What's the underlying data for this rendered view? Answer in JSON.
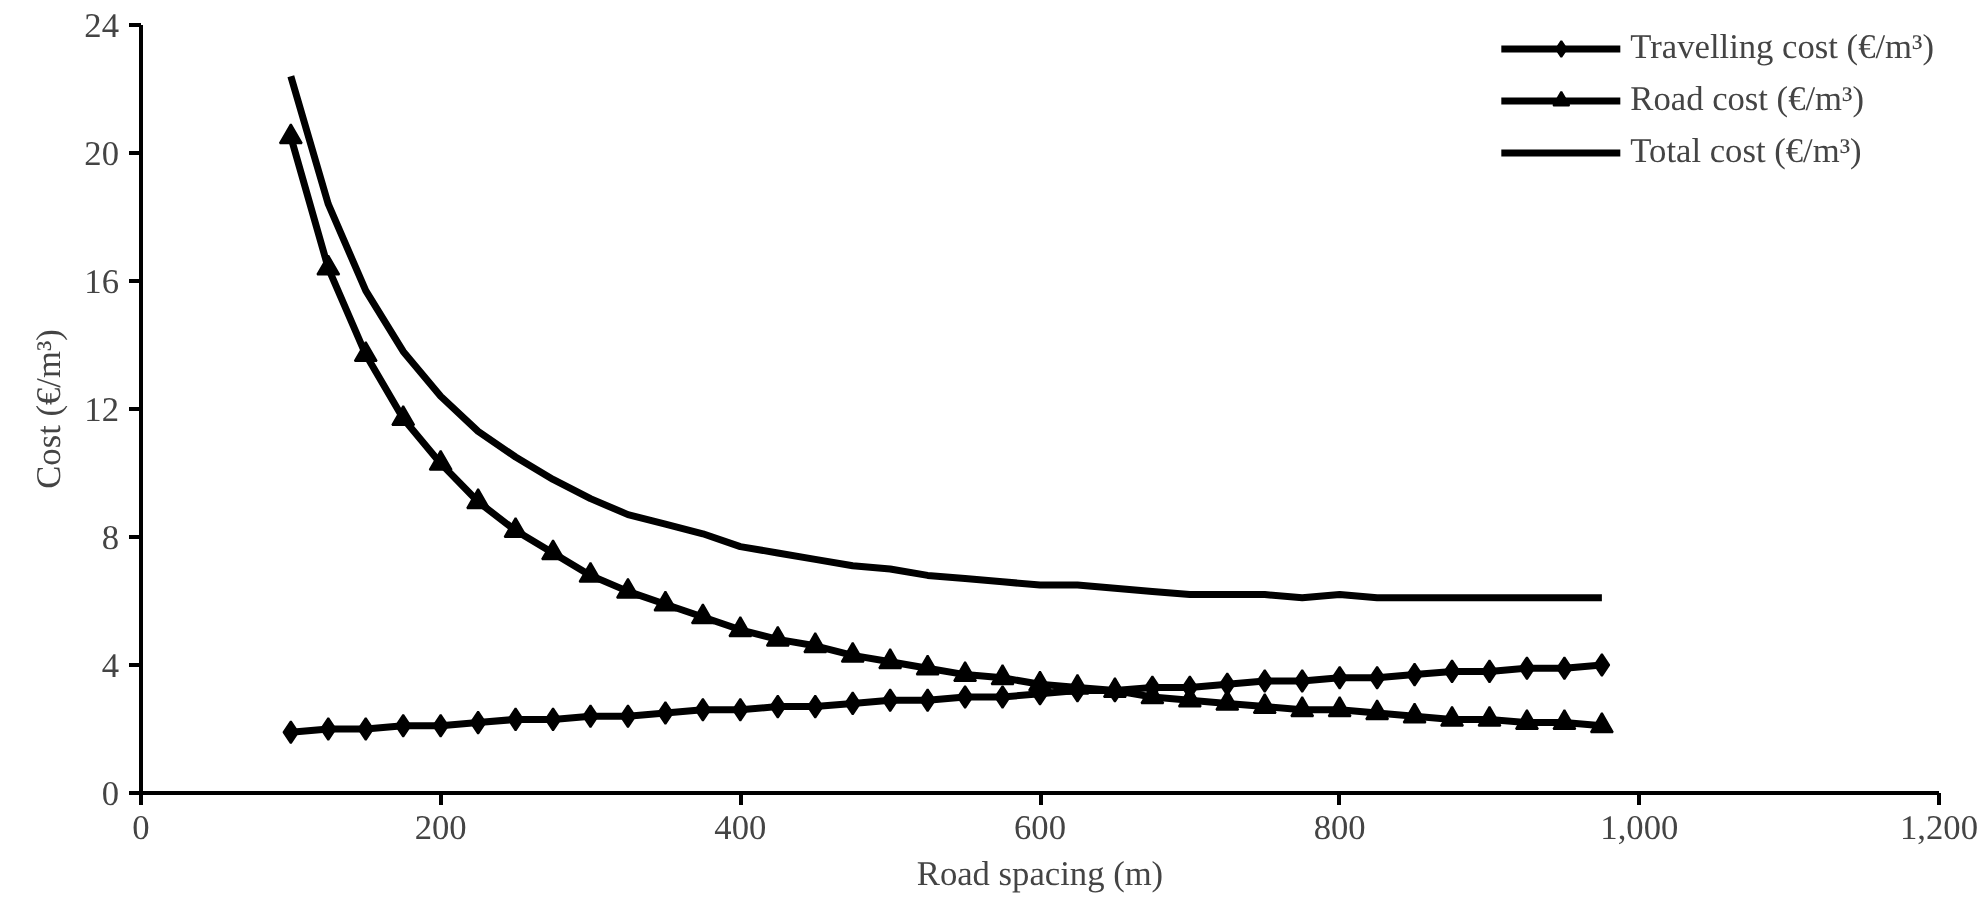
{
  "chart_data": {
    "type": "line",
    "xlabel": "Road spacing (m)",
    "ylabel": "Cost (€/m³)",
    "x": [
      100,
      125,
      150,
      175,
      200,
      225,
      250,
      275,
      300,
      325,
      350,
      375,
      400,
      425,
      450,
      475,
      500,
      525,
      550,
      575,
      600,
      625,
      650,
      675,
      700,
      725,
      750,
      775,
      800,
      825,
      850,
      875,
      900,
      925,
      950,
      975
    ],
    "series": [
      {
        "name": "Travelling cost (€/m³)",
        "color": "#000000",
        "marker": "diamond",
        "values": [
          1.9,
          2.0,
          2.0,
          2.1,
          2.1,
          2.2,
          2.3,
          2.3,
          2.4,
          2.4,
          2.5,
          2.6,
          2.6,
          2.7,
          2.7,
          2.8,
          2.9,
          2.9,
          3.0,
          3.0,
          3.1,
          3.2,
          3.2,
          3.3,
          3.3,
          3.4,
          3.5,
          3.5,
          3.6,
          3.6,
          3.7,
          3.8,
          3.8,
          3.9,
          3.9,
          4.0
        ]
      },
      {
        "name": "Road cost (€/m³)",
        "color": "#000000",
        "marker": "triangle",
        "values": [
          20.5,
          16.4,
          13.7,
          11.7,
          10.3,
          9.1,
          8.2,
          7.5,
          6.8,
          6.3,
          5.9,
          5.5,
          5.1,
          4.8,
          4.6,
          4.3,
          4.1,
          3.9,
          3.7,
          3.6,
          3.4,
          3.3,
          3.2,
          3.0,
          2.9,
          2.8,
          2.7,
          2.6,
          2.6,
          2.5,
          2.4,
          2.3,
          2.3,
          2.2,
          2.2,
          2.1
        ]
      },
      {
        "name": "Total cost (€/m³)",
        "color": "#000000",
        "marker": "none",
        "values": [
          22.4,
          18.4,
          15.7,
          13.8,
          12.4,
          11.3,
          10.5,
          9.8,
          9.2,
          8.7,
          8.4,
          8.1,
          7.7,
          7.5,
          7.3,
          7.1,
          7.0,
          6.8,
          6.7,
          6.6,
          6.5,
          6.5,
          6.4,
          6.3,
          6.2,
          6.2,
          6.2,
          6.1,
          6.2,
          6.1,
          6.1,
          6.1,
          6.1,
          6.1,
          6.1,
          6.1
        ]
      }
    ],
    "xlim": [
      0,
      1200
    ],
    "xticks": [
      0,
      200,
      400,
      600,
      800,
      {
        "value": 1000,
        "label": "1,000"
      },
      {
        "value": 1200,
        "label": "1,200"
      }
    ],
    "ylim": [
      0,
      24
    ],
    "yticks": [
      0,
      4,
      8,
      12,
      16,
      20,
      24
    ],
    "grid": false,
    "legend": "top right",
    "line_style": "solid"
  }
}
